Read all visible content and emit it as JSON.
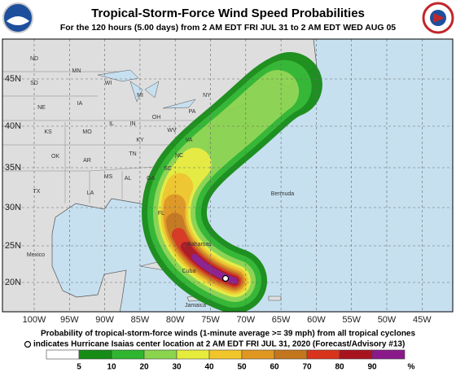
{
  "header": {
    "title": "Tropical-Storm-Force Wind Speed Probabilities",
    "subtitle": "For the 120 hours (5.00 days) from 2 AM EDT FRI JUL 31 to 2 AM EDT WED AUG 05"
  },
  "map": {
    "lat_labels": [
      "45N",
      "40N",
      "35N",
      "30N",
      "25N",
      "20N"
    ],
    "lon_labels": [
      "100W",
      "95W",
      "90W",
      "85W",
      "80W",
      "75W",
      "70W",
      "65W",
      "60W",
      "55W",
      "50W",
      "45W"
    ],
    "place_labels": [
      "ND",
      "SD",
      "NE",
      "KS",
      "OK",
      "TX",
      "MN",
      "IA",
      "MO",
      "AR",
      "LA",
      "WI",
      "IL",
      "MS",
      "MI",
      "IN",
      "KY",
      "TN",
      "AL",
      "OH",
      "WV",
      "GA",
      "VA",
      "NC",
      "SC",
      "FL",
      "PA",
      "NY",
      "Mexico",
      "Bermuda",
      "Cuba",
      "Jamaica",
      "Bahamas"
    ]
  },
  "footer": {
    "line1": "Probability of tropical-storm-force winds (1-minute average >= 39 mph) from all tropical cyclones",
    "line2": "indicates Hurricane Isaias center location at 2 AM EDT FRI JUL 31, 2020 (Forecast/Advisory #13)"
  },
  "legend": {
    "labels": [
      5,
      10,
      20,
      30,
      40,
      50,
      60,
      70,
      80,
      90,
      "%"
    ],
    "colors": [
      "#ffffff",
      "#168c16",
      "#2fb52f",
      "#8ad44e",
      "#e6ec3c",
      "#f0c62a",
      "#e0971f",
      "#c4761c",
      "#d8341c",
      "#a8141e",
      "#8a1a8c"
    ]
  }
}
